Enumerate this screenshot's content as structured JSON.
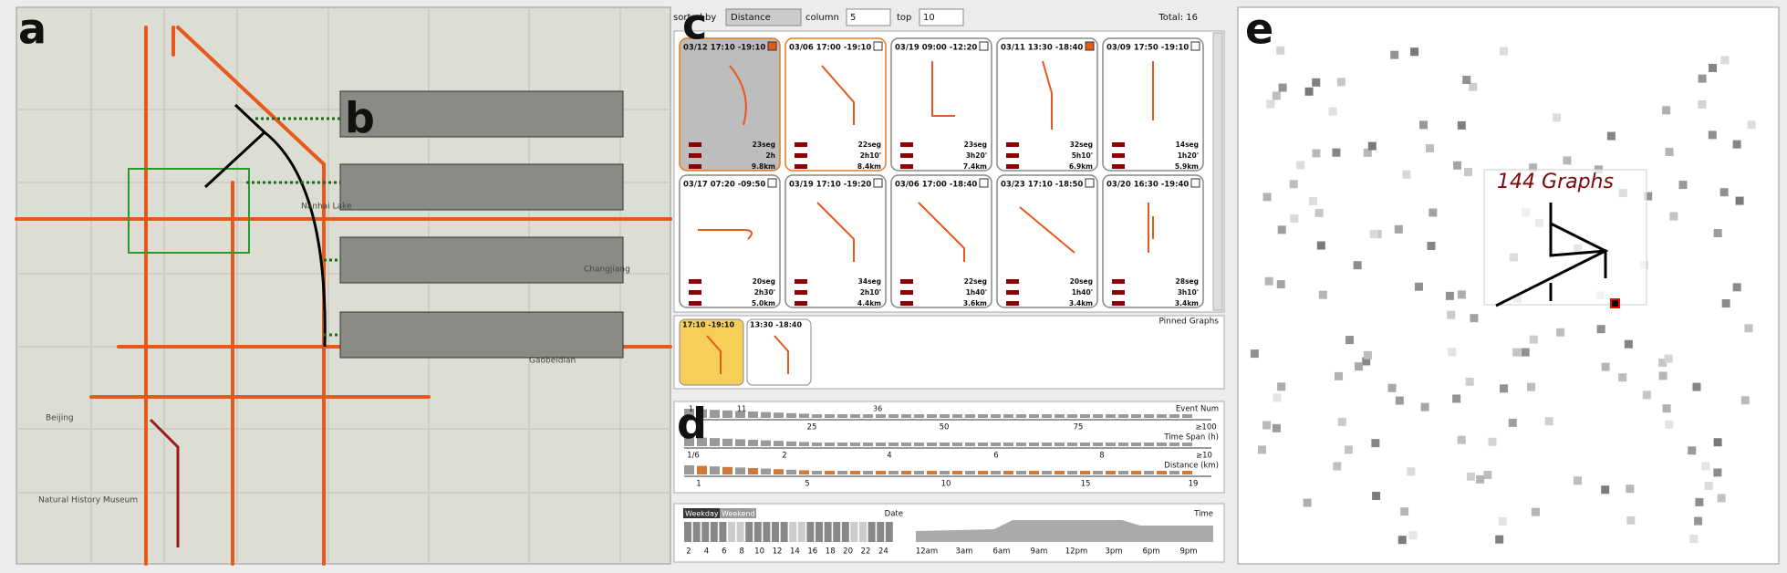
{
  "panel_labels": [
    "a",
    "b",
    "c",
    "d",
    "e"
  ],
  "map": {
    "place_labels": [
      "Beijing",
      "Natural History Museum",
      "Nanhai Lake",
      "Changjiang",
      "Gaobeidian"
    ]
  },
  "toolbar": {
    "sort_label": "sorted by",
    "sort_value": "Distance",
    "column_label": "column",
    "column_value": "5",
    "top_label": "top",
    "top_value": "10",
    "total": "Total: 16"
  },
  "cards": [
    {
      "time": "03/12 17:10 -19:10",
      "segments": "23seg",
      "duration": "2h",
      "distance": "9.8km"
    },
    {
      "time": "03/06 17:00 -19:10",
      "segments": "22seg",
      "duration": "2h10'",
      "distance": "8.4km"
    },
    {
      "time": "03/19 09:00 -12:20",
      "segments": "23seg",
      "duration": "3h20'",
      "distance": "7.4km"
    },
    {
      "time": "03/11 13:30 -18:40",
      "segments": "32seg",
      "duration": "5h10'",
      "distance": "6.9km"
    },
    {
      "time": "03/09 17:50 -19:10",
      "segments": "14seg",
      "duration": "1h20'",
      "distance": "5.9km"
    },
    {
      "time": "03/17 07:20 -09:50",
      "segments": "20seg",
      "duration": "2h30'",
      "distance": "5.0km"
    },
    {
      "time": "03/19 17:10 -19:20",
      "segments": "34seg",
      "duration": "2h10'",
      "distance": "4.4km"
    },
    {
      "time": "03/06 17:00 -18:40",
      "segments": "22seg",
      "duration": "1h40'",
      "distance": "3.6km"
    },
    {
      "time": "03/23 17:10 -18:50",
      "segments": "20seg",
      "duration": "1h40'",
      "distance": "3.4km"
    },
    {
      "time": "03/20 16:30 -19:40",
      "segments": "28seg",
      "duration": "3h10'",
      "distance": "3.4km"
    }
  ],
  "pinned": {
    "title": "Pinned Graphs",
    "cards": [
      "17:10 -19:10",
      "13:30 -18:40"
    ]
  },
  "filters": [
    {
      "label": "Event Num",
      "range_labels": [
        "1",
        "11",
        "36"
      ],
      "ticks": [
        "25",
        "50",
        "75",
        "≥100"
      ]
    },
    {
      "label": "Time Span (h)",
      "range_labels": [],
      "ticks": [
        "1/6",
        "2",
        "4",
        "6",
        "8",
        "≥10"
      ]
    },
    {
      "label": "Distance (km)",
      "range_labels": [],
      "ticks": [
        "1",
        "5",
        "10",
        "15",
        "19"
      ]
    }
  ],
  "date_panel": {
    "tabs": [
      "Weekday",
      "Weekend"
    ],
    "label": "Date",
    "ticks": [
      "2",
      "4",
      "6",
      "8",
      "10",
      "12",
      "14",
      "16",
      "18",
      "20",
      "22",
      "24"
    ]
  },
  "time_panel": {
    "label": "Time",
    "ticks": [
      "12am",
      "3am",
      "6am",
      "9am",
      "12pm",
      "3pm",
      "6pm",
      "9pm"
    ]
  },
  "graph_view": {
    "label": "144 Graphs"
  }
}
